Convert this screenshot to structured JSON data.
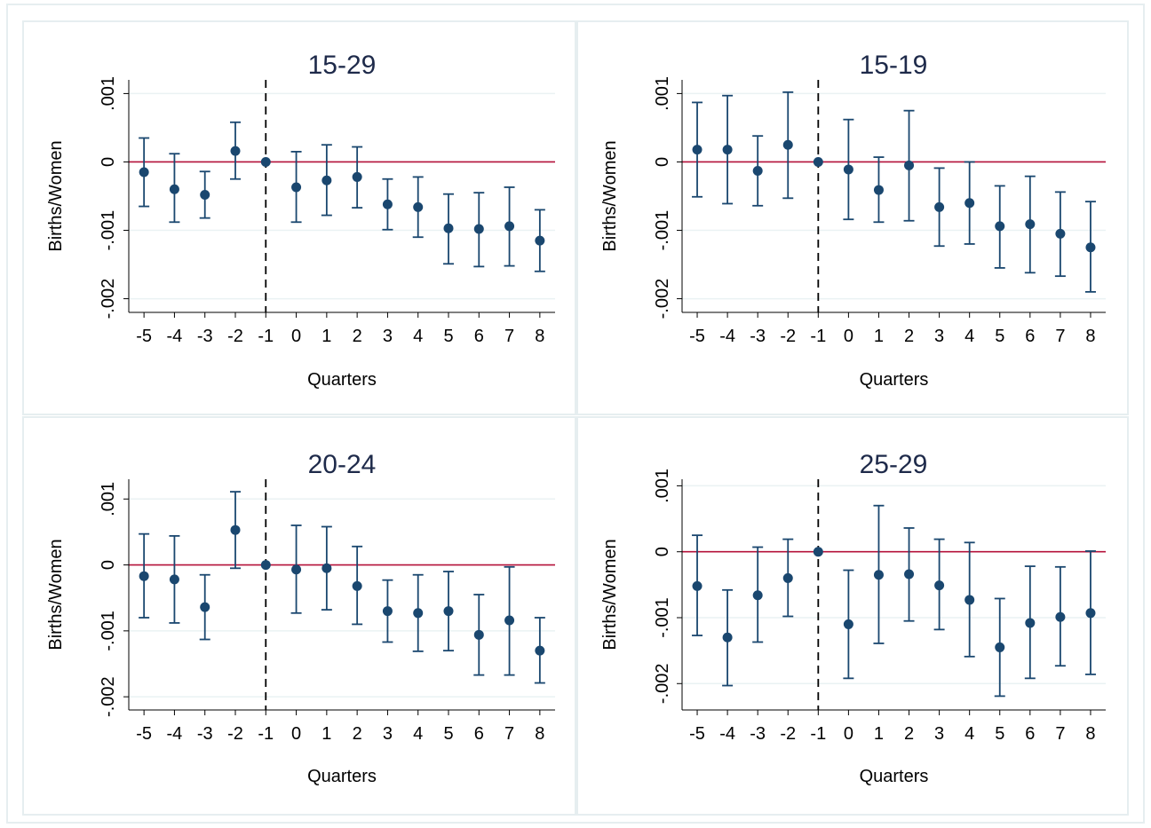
{
  "colors": {
    "marker": "#1a476f",
    "zero_line": "#b5123b",
    "grid": "#eaf2f3",
    "axis": "#000000",
    "title": "#1e2a4a",
    "panel_border": "#e6eef0"
  },
  "chart_data": [
    {
      "type": "scatter",
      "title": "15-29",
      "xlabel": "Quarters",
      "ylabel": "Births/Women",
      "x": [
        -5,
        -4,
        -3,
        -2,
        -1,
        0,
        1,
        2,
        3,
        4,
        5,
        6,
        7,
        8
      ],
      "x_tick_labels": [
        "-5",
        "-4",
        "-3",
        "-2",
        "-1",
        "0",
        "1",
        "2",
        "3",
        "4",
        "5",
        "6",
        "7",
        "8"
      ],
      "y_ticks": [
        0.001,
        0,
        -0.001,
        -0.002
      ],
      "y_tick_labels": [
        ".001",
        "0",
        "-.001",
        "-.002"
      ],
      "ylim": [
        -0.0022,
        0.0012
      ],
      "reference_vline_x": -1,
      "reference_hline_y": 0,
      "grid": true,
      "series": [
        {
          "estimate": [
            -0.00015,
            -0.0004,
            -0.00048,
            0.00016,
            0,
            -0.00037,
            -0.00027,
            -0.00022,
            -0.00062,
            -0.00066,
            -0.00097,
            -0.00098,
            -0.00094,
            -0.00115
          ],
          "ci_low": [
            -0.00065,
            -0.00088,
            -0.00082,
            -0.00025,
            0,
            -0.00088,
            -0.00078,
            -0.00067,
            -0.00099,
            -0.0011,
            -0.00149,
            -0.00153,
            -0.00152,
            -0.0016
          ],
          "ci_high": [
            0.00035,
            0.00012,
            -0.00014,
            0.00058,
            0,
            0.00015,
            0.00025,
            0.00022,
            -0.00025,
            -0.00022,
            -0.00047,
            -0.00045,
            -0.00037,
            -0.0007
          ]
        }
      ]
    },
    {
      "type": "scatter",
      "title": "15-19",
      "xlabel": "Quarters",
      "ylabel": "Births/Women",
      "x": [
        -5,
        -4,
        -3,
        -2,
        -1,
        0,
        1,
        2,
        3,
        4,
        5,
        6,
        7,
        8
      ],
      "x_tick_labels": [
        "-5",
        "-4",
        "-3",
        "-2",
        "-1",
        "0",
        "1",
        "2",
        "3",
        "4",
        "5",
        "6",
        "7",
        "8"
      ],
      "y_ticks": [
        0.001,
        0,
        -0.001,
        -0.002
      ],
      "y_tick_labels": [
        ".001",
        "0",
        "-.001",
        "-.002"
      ],
      "ylim": [
        -0.0022,
        0.0012
      ],
      "reference_vline_x": -1,
      "reference_hline_y": 0,
      "grid": true,
      "series": [
        {
          "estimate": [
            0.00018,
            0.00018,
            -0.00013,
            0.00025,
            0,
            -0.00011,
            -0.00041,
            -5e-05,
            -0.00066,
            -0.0006,
            -0.00094,
            -0.00091,
            -0.00105,
            -0.00125
          ],
          "ci_low": [
            -0.00051,
            -0.00061,
            -0.00064,
            -0.00053,
            0,
            -0.00084,
            -0.00088,
            -0.00086,
            -0.00123,
            -0.0012,
            -0.00155,
            -0.00162,
            -0.00167,
            -0.0019
          ],
          "ci_high": [
            0.00087,
            0.00097,
            0.00038,
            0.00102,
            0,
            0.00062,
            7e-05,
            0.00075,
            -9e-05,
            0,
            -0.00035,
            -0.00021,
            -0.00044,
            -0.00058
          ]
        }
      ]
    },
    {
      "type": "scatter",
      "title": "20-24",
      "xlabel": "Quarters",
      "ylabel": "Births/Women",
      "x": [
        -5,
        -4,
        -3,
        -2,
        -1,
        0,
        1,
        2,
        3,
        4,
        5,
        6,
        7,
        8
      ],
      "x_tick_labels": [
        "-5",
        "-4",
        "-3",
        "-2",
        "-1",
        "0",
        "1",
        "2",
        "3",
        "4",
        "5",
        "6",
        "7",
        "8"
      ],
      "y_ticks": [
        0.001,
        0,
        -0.001,
        -0.002
      ],
      "y_tick_labels": [
        ".001",
        "0",
        "-.001",
        "-.002"
      ],
      "ylim": [
        -0.0022,
        0.0013
      ],
      "reference_vline_x": -1,
      "reference_hline_y": 0,
      "grid": true,
      "series": [
        {
          "estimate": [
            -0.00017,
            -0.00022,
            -0.00064,
            0.00053,
            0,
            -7e-05,
            -5e-05,
            -0.00032,
            -0.0007,
            -0.00073,
            -0.0007,
            -0.00106,
            -0.00084,
            -0.0013
          ],
          "ci_low": [
            -0.0008,
            -0.00088,
            -0.00113,
            -5e-05,
            0,
            -0.00073,
            -0.00068,
            -0.0009,
            -0.00117,
            -0.00131,
            -0.0013,
            -0.00167,
            -0.00167,
            -0.00179
          ],
          "ci_high": [
            0.00047,
            0.00044,
            -0.00015,
            0.00111,
            0,
            0.0006,
            0.00058,
            0.00028,
            -0.00023,
            -0.00015,
            -0.0001,
            -0.00045,
            -3e-05,
            -0.0008
          ]
        }
      ]
    },
    {
      "type": "scatter",
      "title": "25-29",
      "xlabel": "Quarters",
      "ylabel": "Births/Women",
      "x": [
        -5,
        -4,
        -3,
        -2,
        -1,
        0,
        1,
        2,
        3,
        4,
        5,
        6,
        7,
        8
      ],
      "x_tick_labels": [
        "-5",
        "-4",
        "-3",
        "-2",
        "-1",
        "0",
        "1",
        "2",
        "3",
        "4",
        "5",
        "6",
        "7",
        "8"
      ],
      "y_ticks": [
        0.001,
        0,
        -0.001,
        -0.002
      ],
      "y_tick_labels": [
        ".001",
        "0",
        "-.001",
        "-.002"
      ],
      "ylim": [
        -0.0024,
        0.0011
      ],
      "reference_vline_x": -1,
      "reference_hline_y": 0,
      "grid": true,
      "series": [
        {
          "estimate": [
            -0.00052,
            -0.0013,
            -0.00066,
            -0.0004,
            0,
            -0.0011,
            -0.00035,
            -0.00034,
            -0.00051,
            -0.00073,
            -0.00145,
            -0.00108,
            -0.00099,
            -0.00093
          ],
          "ci_low": [
            -0.00127,
            -0.00203,
            -0.00137,
            -0.00098,
            0,
            -0.00192,
            -0.00139,
            -0.00105,
            -0.00118,
            -0.00159,
            -0.00219,
            -0.00192,
            -0.00173,
            -0.00186
          ],
          "ci_high": [
            0.00025,
            -0.00058,
            7e-05,
            0.00019,
            0,
            -0.00028,
            0.0007,
            0.00036,
            0.00019,
            0.00014,
            -0.00071,
            -0.00022,
            -0.00023,
            1e-05
          ]
        }
      ]
    }
  ]
}
